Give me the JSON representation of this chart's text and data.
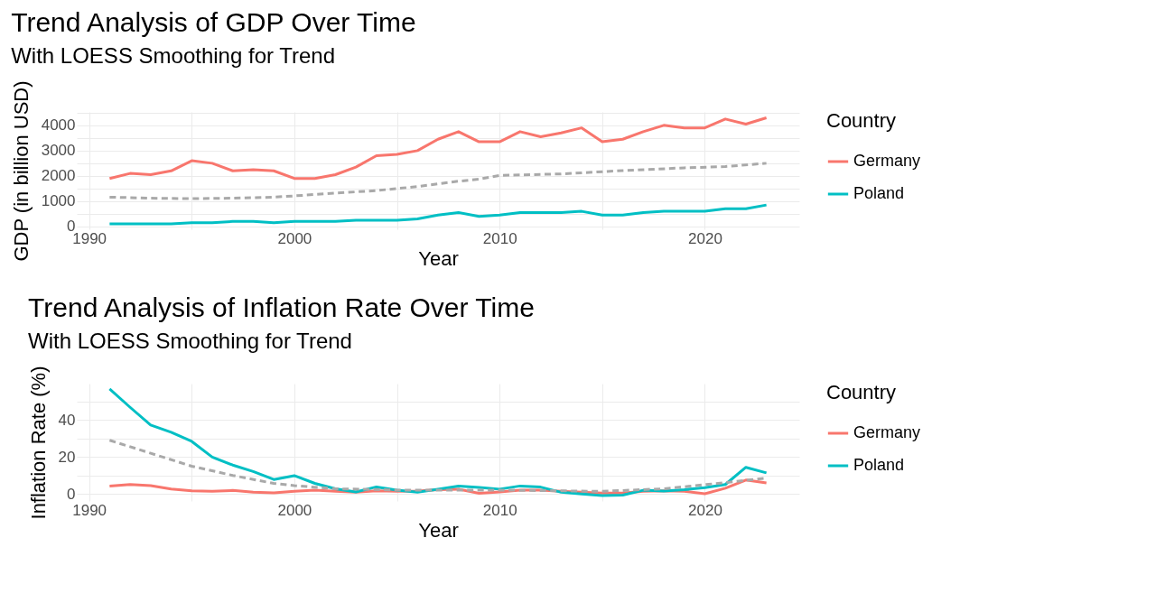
{
  "chart_data": [
    {
      "type": "line",
      "title": "Trend Analysis of GDP Over Time",
      "subtitle": "With LOESS Smoothing for Trend",
      "xlabel": "Year",
      "ylabel": "GDP (in billion USD)",
      "legend_title": "Country",
      "legend": "right",
      "grid": true,
      "line_style": "solid",
      "x": [
        1991,
        1992,
        1993,
        1994,
        1995,
        1996,
        1997,
        1998,
        1999,
        2000,
        2001,
        2002,
        2003,
        2004,
        2005,
        2006,
        2007,
        2008,
        2009,
        2010,
        2011,
        2012,
        2013,
        2014,
        2015,
        2016,
        2017,
        2018,
        2019,
        2020,
        2021,
        2022,
        2023
      ],
      "xlim": [
        1989.4,
        2024.6
      ],
      "xticks": [
        1990,
        {
          "value": 1995,
          "label": null
        },
        2000,
        {
          "value": 2005,
          "label": null
        },
        2010,
        {
          "value": 2015,
          "label": null
        },
        2020
      ],
      "ylim": [
        -110,
        4530
      ],
      "yticks": [
        0,
        {
          "value": 500,
          "label": null
        },
        1000,
        {
          "value": 1500,
          "label": null
        },
        2000,
        {
          "value": 2500,
          "label": null
        },
        3000,
        {
          "value": 3500,
          "label": null
        },
        4000,
        {
          "value": 4500,
          "label": null
        }
      ],
      "series": [
        {
          "name": "Germany",
          "color": "#f8766d",
          "values": [
            1900,
            2100,
            2050,
            2200,
            2600,
            2500,
            2200,
            2250,
            2200,
            1900,
            1900,
            2050,
            2350,
            2800,
            2850,
            3000,
            3450,
            3750,
            3350,
            3350,
            3750,
            3550,
            3700,
            3900,
            3350,
            3450,
            3750,
            4000,
            3900,
            3900,
            4250,
            4050,
            4300
          ]
        },
        {
          "name": "Poland",
          "color": "#00bfc4",
          "values": [
            100,
            100,
            100,
            100,
            150,
            150,
            200,
            200,
            150,
            200,
            200,
            200,
            250,
            250,
            250,
            300,
            450,
            550,
            400,
            450,
            550,
            550,
            550,
            600,
            450,
            450,
            550,
            600,
            600,
            600,
            700,
            700,
            850
          ]
        },
        {
          "type": "line",
          "color": "#a9a9a9",
          "line_style": "dashed",
          "x": [
            1991,
            1993,
            1995,
            1997,
            1999,
            2000,
            2002,
            2004,
            2006,
            2008,
            2009,
            2010,
            2013,
            2016,
            2019,
            2021,
            2023
          ],
          "values": [
            1160,
            1120,
            1100,
            1120,
            1160,
            1210,
            1320,
            1420,
            1580,
            1790,
            1870,
            2020,
            2080,
            2210,
            2320,
            2370,
            2500
          ]
        }
      ]
    },
    {
      "type": "line",
      "title": "Trend Analysis of Inflation Rate Over Time",
      "subtitle": "With LOESS Smoothing for Trend",
      "xlabel": "Year",
      "ylabel": "Inflation Rate (%)",
      "legend_title": "Country",
      "legend": "right",
      "grid": true,
      "line_style": "solid",
      "x": [
        1991,
        1992,
        1993,
        1994,
        1995,
        1996,
        1997,
        1998,
        1999,
        2000,
        2001,
        2002,
        2003,
        2004,
        2005,
        2006,
        2007,
        2008,
        2009,
        2010,
        2011,
        2012,
        2013,
        2014,
        2015,
        2016,
        2017,
        2018,
        2019,
        2020,
        2021,
        2022,
        2023
      ],
      "xlim": [
        1989.4,
        2024.6
      ],
      "xticks": [
        1990,
        {
          "value": 1995,
          "label": null
        },
        2000,
        {
          "value": 2005,
          "label": null
        },
        2010,
        {
          "value": 2015,
          "label": null
        },
        2020
      ],
      "ylim": [
        -3.8,
        59.6
      ],
      "yticks": [
        0,
        {
          "value": 10,
          "label": null
        },
        20,
        {
          "value": 30,
          "label": null
        },
        40,
        {
          "value": 50,
          "label": null
        }
      ],
      "series": [
        {
          "name": "Germany",
          "color": "#f8766d",
          "values": [
            4.3,
            5.1,
            4.5,
            2.7,
            1.7,
            1.4,
            1.9,
            0.9,
            0.6,
            1.4,
            2.0,
            1.4,
            1.0,
            1.7,
            1.5,
            1.6,
            2.3,
            2.6,
            0.3,
            1.1,
            2.1,
            2.0,
            1.5,
            0.9,
            0.5,
            0.5,
            1.5,
            1.7,
            1.4,
            0.1,
            3.1,
            7.5,
            6.0
          ]
        },
        {
          "name": "Poland",
          "color": "#00bfc4",
          "values": [
            56.7,
            46.8,
            37.2,
            33.3,
            28.4,
            19.9,
            15.6,
            12.1,
            7.8,
            9.9,
            5.7,
            2.8,
            1.1,
            3.8,
            2.1,
            1.0,
            2.5,
            4.2,
            3.5,
            2.6,
            4.3,
            3.7,
            0.9,
            0.0,
            -0.9,
            -0.6,
            2.0,
            1.6,
            2.3,
            3.4,
            5.1,
            14.4,
            11.4
          ]
        },
        {
          "type": "line",
          "color": "#a9a9a9",
          "line_style": "dashed",
          "x": [
            1991,
            1993,
            1995,
            1997,
            1999,
            2000,
            2002,
            2005,
            2010,
            2015,
            2018,
            2020,
            2023
          ],
          "values": [
            29,
            22,
            15,
            10,
            5.7,
            4.5,
            2.8,
            2.1,
            2.1,
            1.4,
            2.8,
            5,
            8.5
          ]
        }
      ]
    }
  ]
}
